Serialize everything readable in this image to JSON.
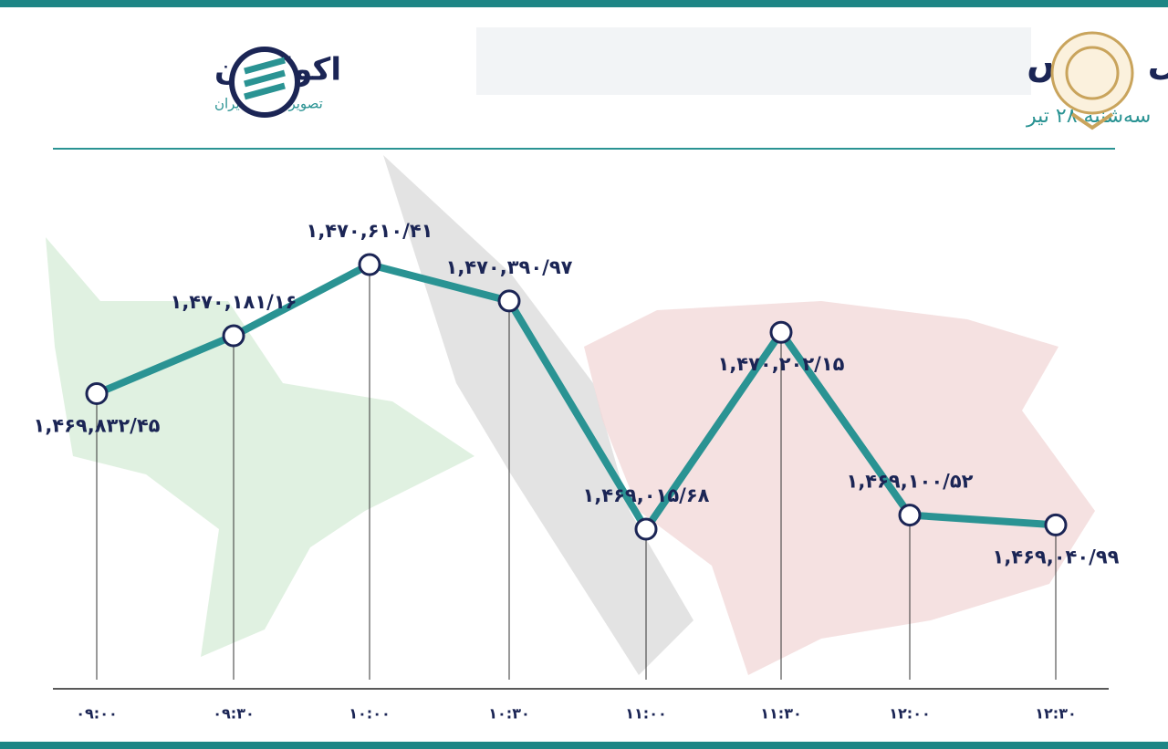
{
  "brand": {
    "name": "اکوایران",
    "tagline": "تصویر اقتصاد ایران"
  },
  "chart_data": {
    "type": "line",
    "title": "روند شاخص کل بورس",
    "subtitle": "سه‌شنبه ۲۸ تیر",
    "categories": [
      "۰۹:۰۰",
      "۰۹:۳۰",
      "۱۰:۰۰",
      "۱۰:۳۰",
      "۱۱:۰۰",
      "۱۱:۳۰",
      "۱۲:۰۰",
      "۱۲:۳۰"
    ],
    "values": [
      1469832.45,
      1470181.16,
      1470610.41,
      1470390.97,
      1469015.68,
      1470202.15,
      1469100.52,
      1469040.99
    ],
    "value_labels": [
      "۱,۴۶۹,۸۳۲/۴۵",
      "۱,۴۷۰,۱۸۱/۱۶",
      "۱,۴۷۰,۶۱۰/۴۱",
      "۱,۴۷۰,۳۹۰/۹۷",
      "۱,۴۶۹,۰۱۵/۶۸",
      "۱,۴۷۰,۲۰۲/۱۵",
      "۱,۴۶۹,۱۰۰/۵۲",
      "۱,۴۶۹,۰۴۰/۹۹"
    ],
    "color": "#2a9393"
  }
}
